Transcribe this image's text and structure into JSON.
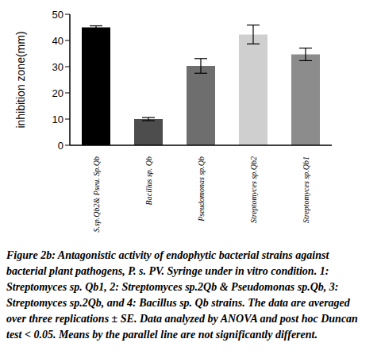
{
  "chart_data": {
    "type": "bar",
    "y_label": "inhibition zone(mm)",
    "categories": [
      "S.sp.Qb2& Pseu. Sp.Qb",
      "Bacillus sp. Qb",
      "Pseudomonas sp.Qb",
      "Streptomyces sp.Qb2",
      "Streptomyces sp.Qb1"
    ],
    "values": [
      45,
      10,
      30.3,
      42.3,
      34.7
    ],
    "errors": [
      0.6,
      0.6,
      2.8,
      3.6,
      2.4
    ],
    "colors": [
      "#000000",
      "#4d4d4d",
      "#6e6e6e",
      "#cfcfcf",
      "#8c8c8c"
    ],
    "ylim": [
      0,
      50
    ],
    "yticks": [
      0,
      10,
      20,
      30,
      40,
      50
    ],
    "grid": false,
    "caption_label": "Figure 2b:",
    "caption": "Antagonistic activity of endophytic bacterial strains against bacterial plant pathogens, P. s. PV. Syringe under in vitro condition. 1: Streptomyces sp. Qb1, 2: Streptomyces sp.2Qb & Pseudomonas sp.Qb, 3: Streptomyces sp.2Qb, and 4: Bacillus sp. Qb strains. The data are averaged over three replications ± SE. Data analyzed by ANOVA and post hoc Duncan test < 0.05. Means by the parallel line are not significantly different."
  }
}
